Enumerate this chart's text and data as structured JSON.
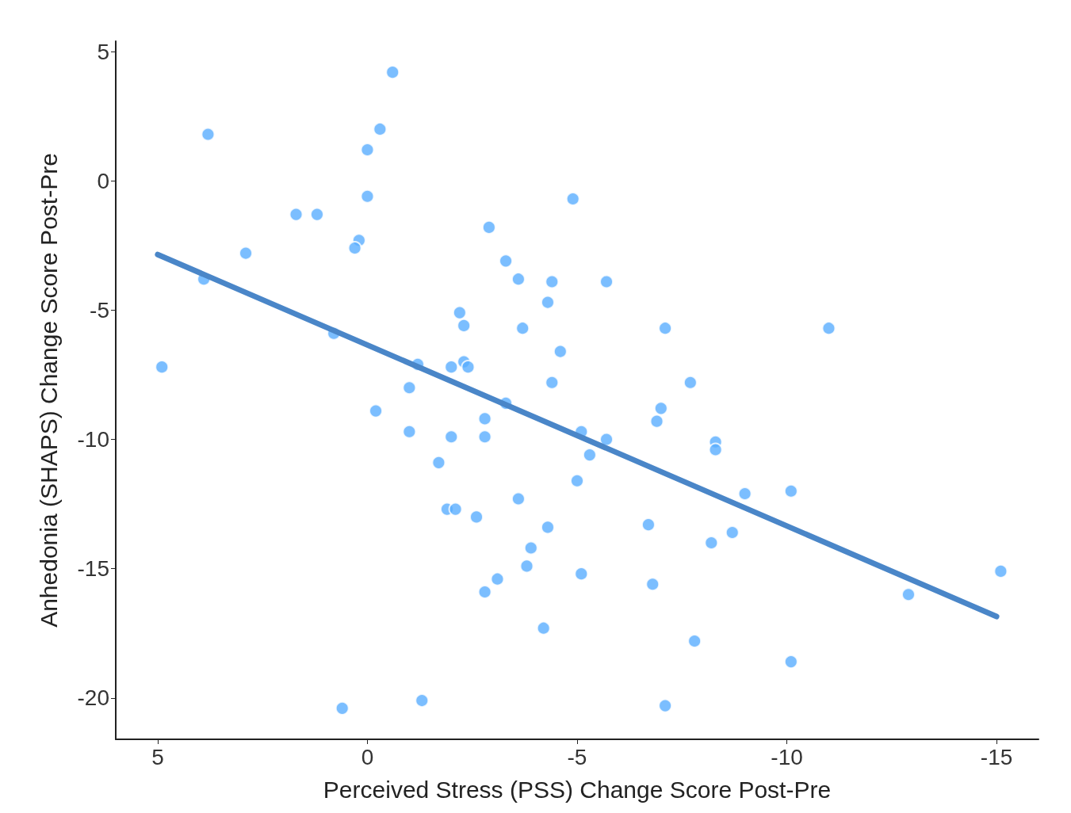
{
  "chart_data": {
    "type": "scatter",
    "xlabel": "Perceived Stress (PSS) Change Score Post-Pre",
    "ylabel": "Anhedonia (SHAPS) Change Score Post-Pre",
    "xlim": [
      6,
      -16
    ],
    "xticks": [
      5,
      0,
      -5,
      -10,
      -15
    ],
    "ylim": [
      -21.6,
      5.4
    ],
    "yticks": [
      5,
      0,
      -5,
      -10,
      -15,
      -20
    ],
    "grid": false,
    "marker": "circle",
    "series": [
      {
        "color": "#5aaeff",
        "x": [
          -0.6,
          3.8,
          -0.3,
          0.0,
          0.0,
          -4.9,
          1.7,
          1.2,
          -2.9,
          0.2,
          0.3,
          2.9,
          -3.3,
          3.9,
          -3.6,
          -4.4,
          -5.7,
          -4.3,
          -2.2,
          -2.3,
          -3.7,
          -7.1,
          -11.0,
          0.8,
          -4.6,
          4.9,
          -1.2,
          -2.0,
          -2.3,
          -2.4,
          -1.0,
          -4.4,
          -7.7,
          -3.3,
          -0.2,
          -2.8,
          -7.0,
          -6.9,
          -1.0,
          -2.0,
          -2.8,
          -5.1,
          -5.7,
          -8.3,
          -8.3,
          -5.3,
          -1.7,
          -5.0,
          -9.0,
          -10.1,
          -3.6,
          -1.9,
          -2.1,
          -2.6,
          -4.3,
          -6.7,
          -8.7,
          -8.2,
          -3.9,
          -3.8,
          -5.1,
          -3.1,
          -15.1,
          -6.8,
          -2.8,
          -12.9,
          -4.2,
          -7.8,
          -10.1,
          0.6,
          -1.3,
          -7.1
        ],
        "values": [
          4.2,
          1.8,
          2.0,
          1.2,
          -0.6,
          -0.7,
          -1.3,
          -1.3,
          -1.8,
          -2.3,
          -2.6,
          -2.8,
          -3.1,
          -3.8,
          -3.8,
          -3.9,
          -3.9,
          -4.7,
          -5.1,
          -5.6,
          -5.7,
          -5.7,
          -5.7,
          -5.9,
          -6.6,
          -7.2,
          -7.1,
          -7.2,
          -7.0,
          -7.2,
          -8.0,
          -7.8,
          -7.8,
          -8.6,
          -8.9,
          -9.2,
          -8.8,
          -9.3,
          -9.7,
          -9.9,
          -9.9,
          -9.7,
          -10.0,
          -10.1,
          -10.4,
          -10.6,
          -10.9,
          -11.6,
          -12.1,
          -12.0,
          -12.3,
          -12.7,
          -12.7,
          -13.0,
          -13.4,
          -13.3,
          -13.6,
          -14.0,
          -14.2,
          -14.9,
          -15.2,
          -15.4,
          -15.1,
          -15.6,
          -15.9,
          -16.0,
          -17.3,
          -17.8,
          -18.6,
          -20.4,
          -20.1,
          -20.3
        ]
      },
      {
        "type": "line",
        "color": "#4a86c8",
        "marker": "none",
        "line_style": "solid",
        "x": [
          5,
          -15
        ],
        "values": [
          -2.85,
          -16.85
        ]
      }
    ]
  }
}
